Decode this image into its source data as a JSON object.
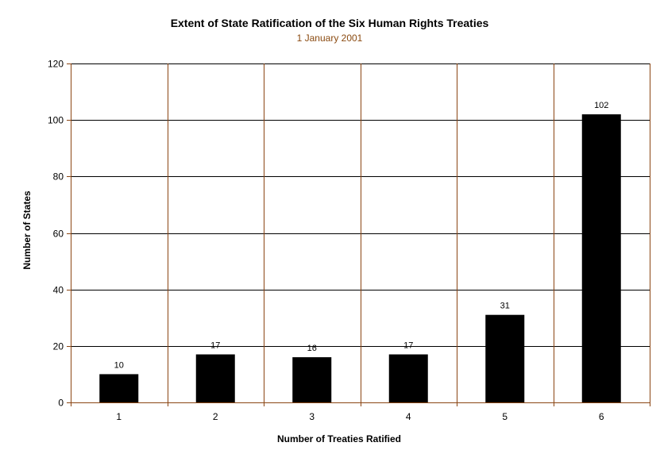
{
  "chart_data": {
    "type": "bar",
    "title": "Extent of State Ratification of the Six Human Rights Treaties",
    "subtitle": "1 January 2001",
    "xlabel": "Number of Treaties Ratified",
    "ylabel": "Number of States",
    "categories": [
      "1",
      "2",
      "3",
      "4",
      "5",
      "6"
    ],
    "values": [
      10,
      17,
      16,
      17,
      31,
      102
    ],
    "ylim": [
      0,
      120
    ],
    "yticks": [
      "0",
      "20",
      "40",
      "60",
      "80",
      "100",
      "120"
    ],
    "grid": true,
    "legend": "none",
    "colors": {
      "bar": "#000000",
      "horizontal_grid": "#000000",
      "vertical_grid": "#8b4513",
      "axis": "#8b4513",
      "subtitle": "#8a4a10"
    }
  }
}
